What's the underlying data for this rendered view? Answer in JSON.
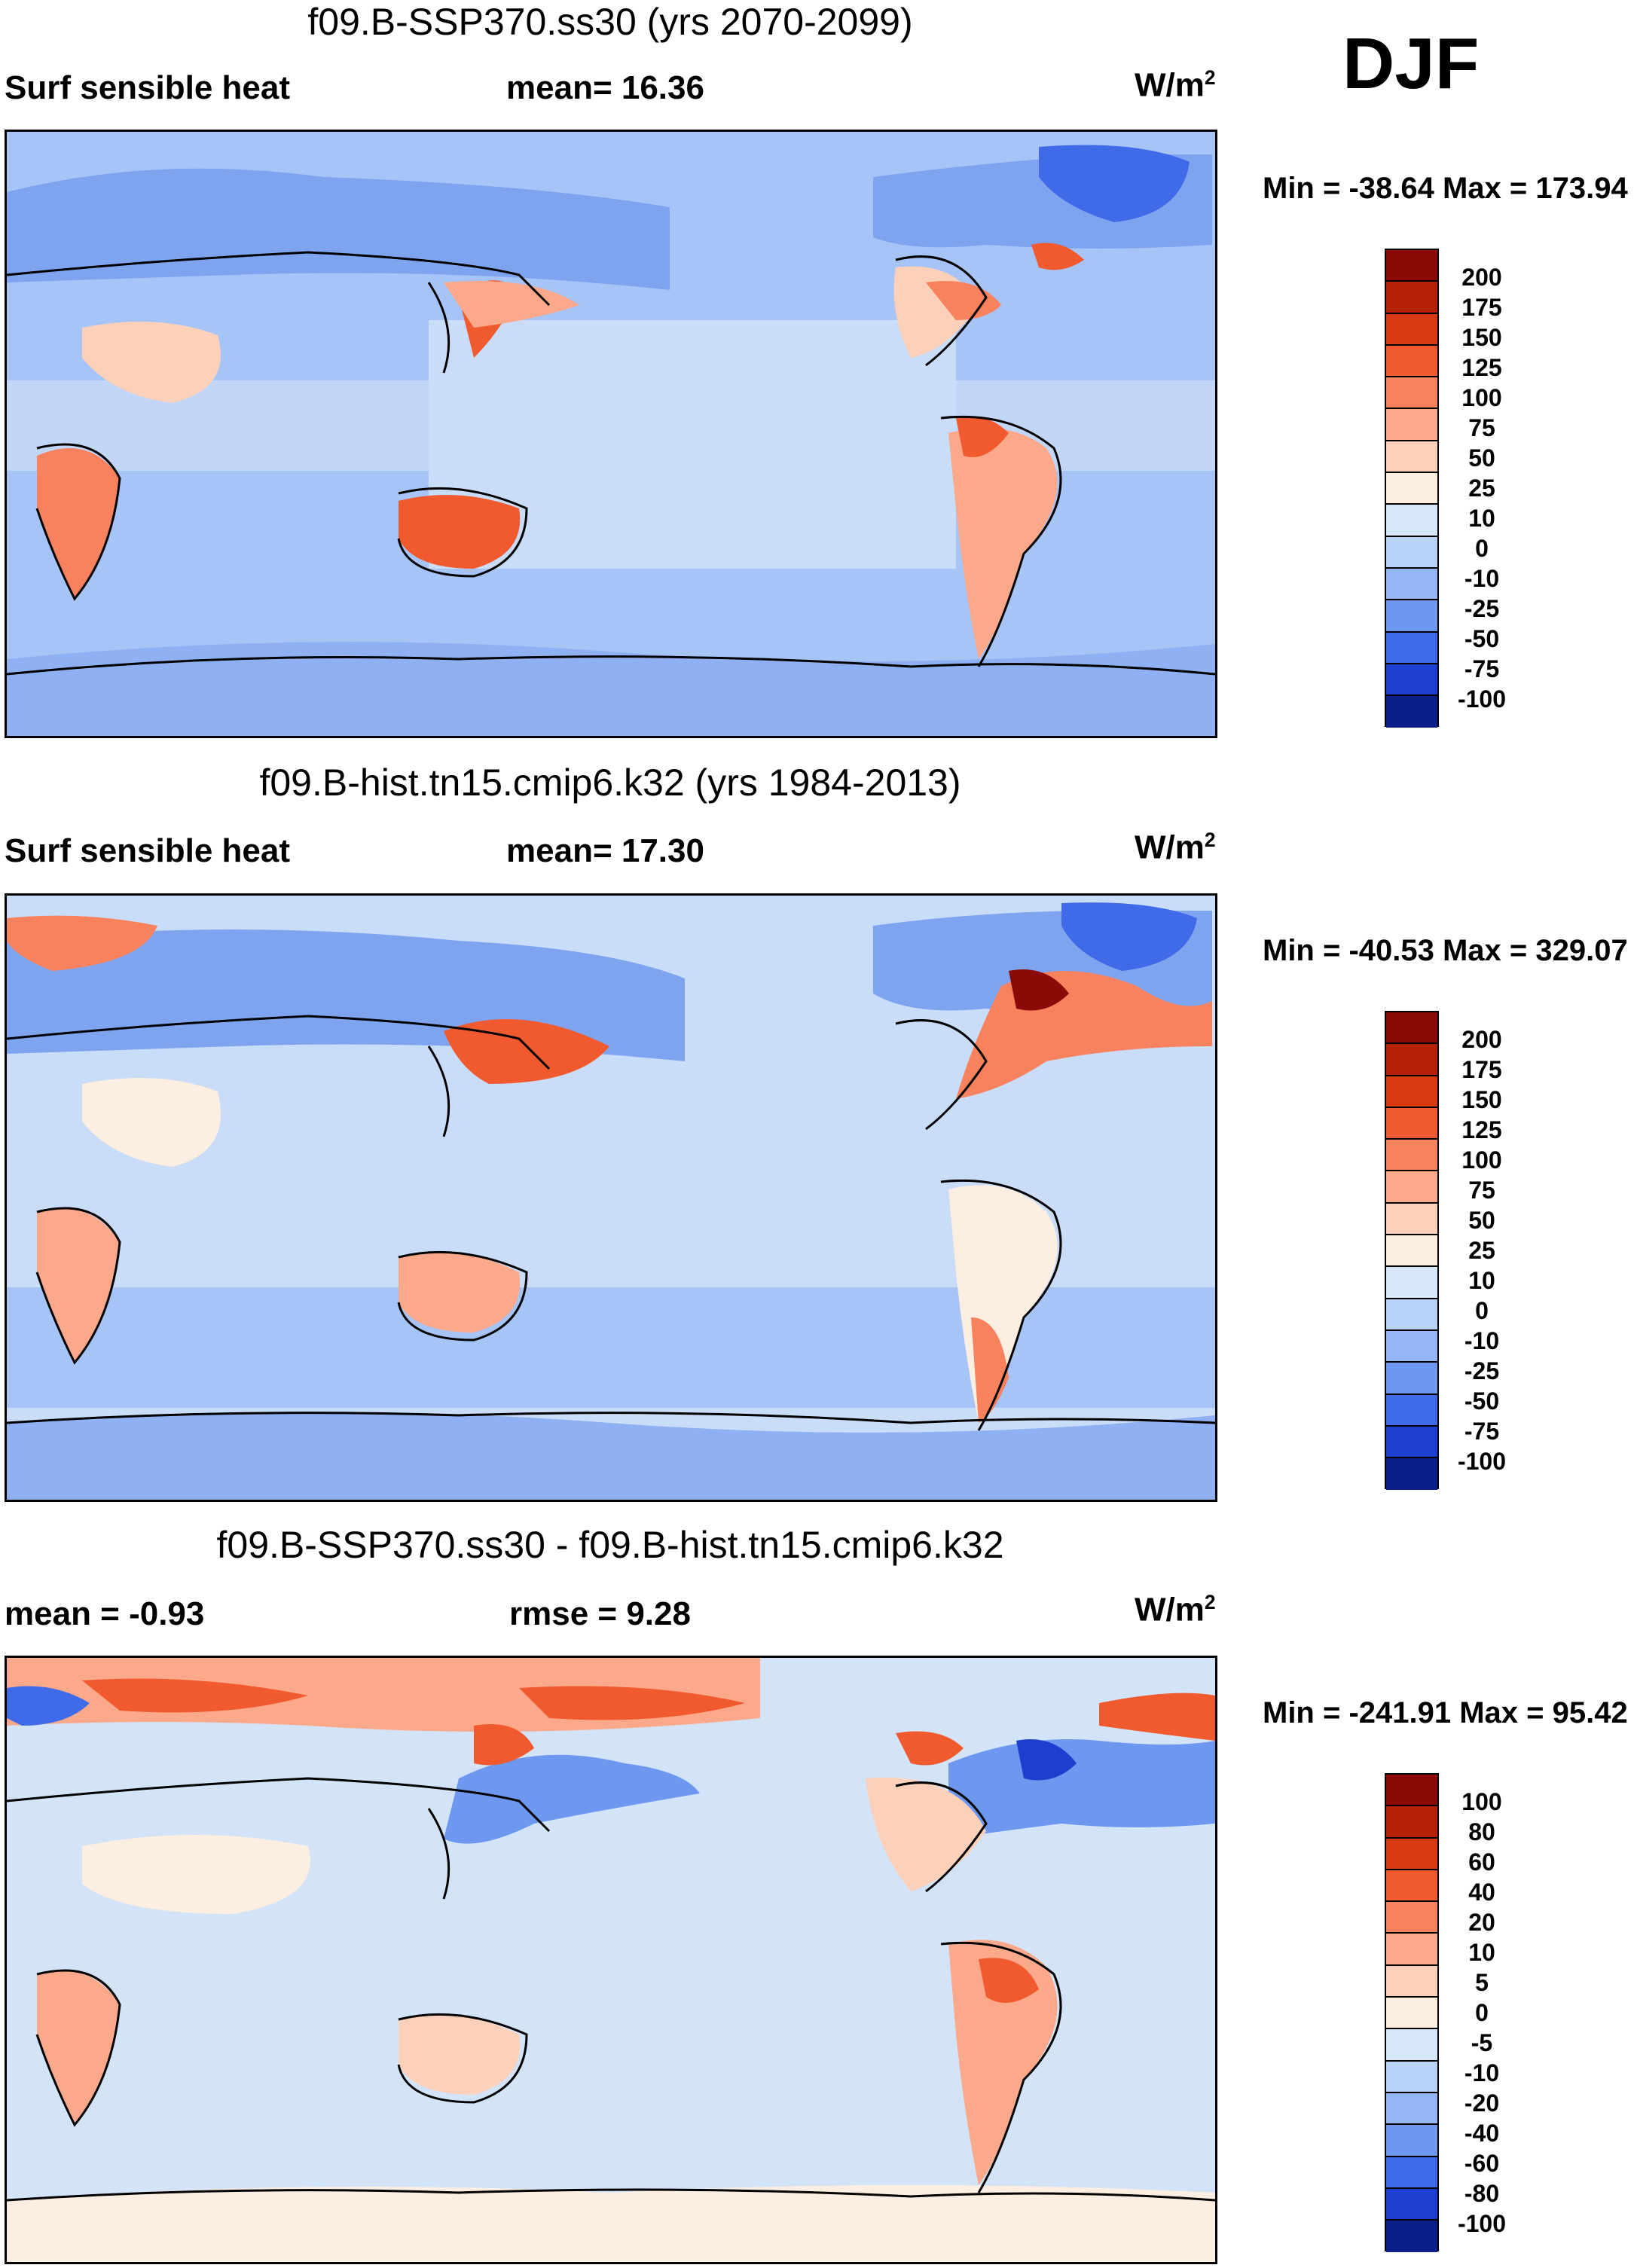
{
  "season": "DJF",
  "panels": [
    {
      "title": "f09.B-SSP370.ss30 (yrs 2070-2099)",
      "left_label": "Surf sensible heat",
      "center_label": "mean=  16.36",
      "units": "W/m",
      "units_sup": "2",
      "min_max": "Min = -38.64 Max = 173.94",
      "colorbar_ticks": [
        "200",
        "175",
        "150",
        "125",
        "100",
        "75",
        "50",
        "25",
        "10",
        "0",
        "-10",
        "-25",
        "-50",
        "-75",
        "-100"
      ],
      "background_color": "#a7c4f7"
    },
    {
      "title": "f09.B-hist.tn15.cmip6.k32 (yrs 1984-2013)",
      "left_label": "Surf sensible heat",
      "center_label": "mean=  17.30",
      "units": "W/m",
      "units_sup": "2",
      "min_max": "Min = -40.53 Max = 329.07",
      "colorbar_ticks": [
        "200",
        "175",
        "150",
        "125",
        "100",
        "75",
        "50",
        "25",
        "10",
        "0",
        "-10",
        "-25",
        "-50",
        "-75",
        "-100"
      ],
      "background_color": "#c9dcf8"
    },
    {
      "title": "f09.B-SSP370.ss30 - f09.B-hist.tn15.cmip6.k32",
      "left_label": "mean =  -0.93",
      "center_label": "rmse =    9.28",
      "units": "W/m",
      "units_sup": "2",
      "min_max": "Min = -241.91 Max =  95.42",
      "colorbar_ticks": [
        "100",
        "80",
        "60",
        "40",
        "20",
        "10",
        "5",
        "0",
        "-5",
        "-10",
        "-20",
        "-40",
        "-60",
        "-80",
        "-100"
      ],
      "background_color": "#d4e4f8"
    }
  ],
  "colorbar_colors": [
    "#8b0a07",
    "#b52007",
    "#d83a12",
    "#f05a2e",
    "#f8825d",
    "#fba98a",
    "#fdd0b9",
    "#fdeee2",
    "#d8e8fb",
    "#b9d2f8",
    "#94b6f5",
    "#6e97f0",
    "#3f6ae8",
    "#1c3fd0",
    "#0a1f8a"
  ]
}
